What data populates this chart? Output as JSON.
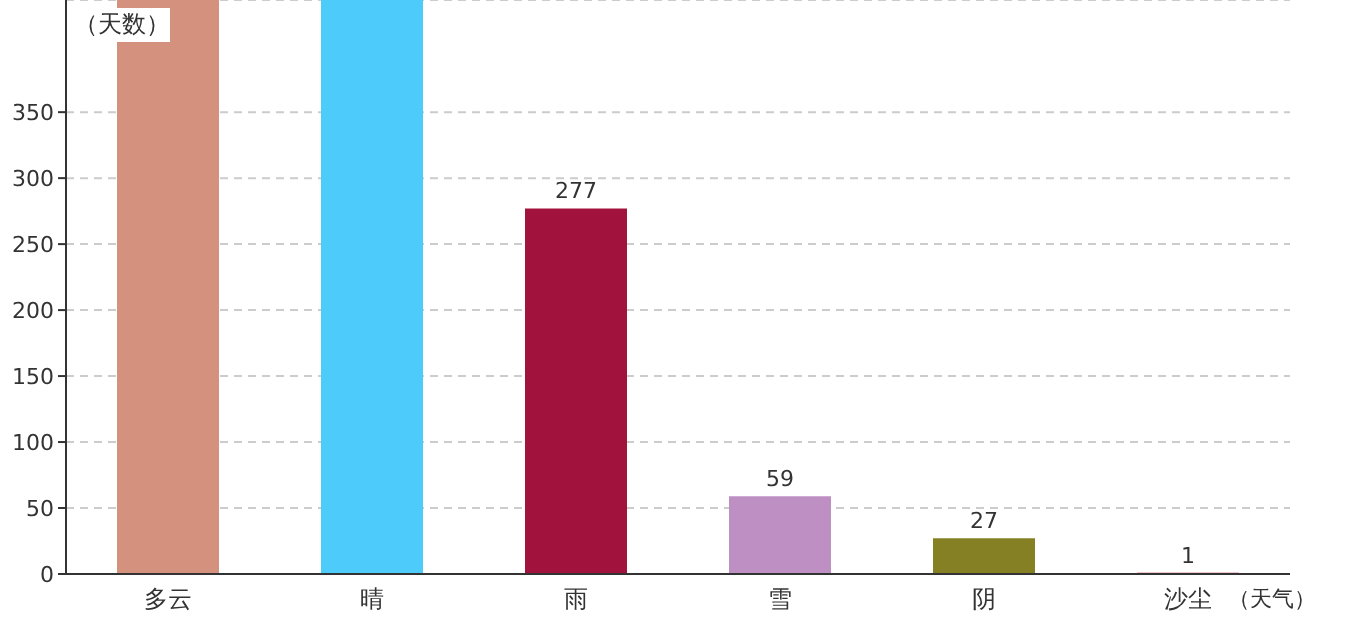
{
  "chart_data": {
    "type": "bar",
    "xlabel": "（天气）",
    "ylabel": "（天数）",
    "categories": [
      "多云",
      "晴",
      "雨",
      "雪",
      "阴",
      "沙尘"
    ],
    "values": [
      435,
      435,
      277,
      59,
      27,
      1
    ],
    "value_labels": [
      null,
      null,
      "277",
      "59",
      "27",
      "1"
    ],
    "colors": [
      "#d4917e",
      "#4dcbfa",
      "#a1133d",
      "#be8fc3",
      "#858024",
      "#c8102e"
    ],
    "ylim": [
      0,
      435
    ],
    "yticks": [
      0,
      50,
      100,
      150,
      200,
      250,
      300,
      350
    ],
    "grid": "y"
  }
}
